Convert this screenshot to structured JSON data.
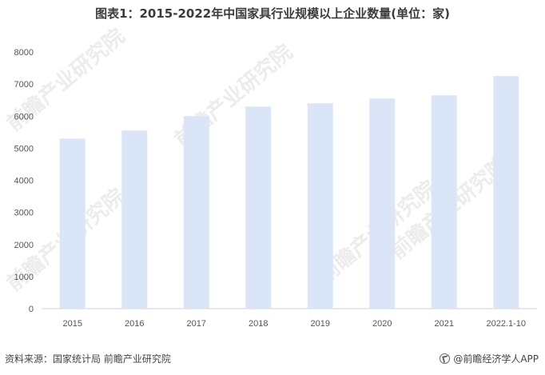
{
  "title": "图表1：2015-2022年中国家具行业规模以上企业数量(单位：家)",
  "footer": {
    "source": "资料来源：国家统计局 前瞻产业研究院",
    "brand": "@前瞻经济学人APP"
  },
  "watermark": "前瞻产业研究院",
  "colors": {
    "bar": "#dae6f7",
    "axis": "#d0d0d0"
  },
  "chart_data": {
    "type": "bar",
    "title": "图表1：2015-2022年中国家具行业规模以上企业数量(单位：家)",
    "categories": [
      "2015",
      "2016",
      "2017",
      "2018",
      "2019",
      "2020",
      "2021",
      "2022.1-10"
    ],
    "values": [
      5300,
      5550,
      6000,
      6300,
      6400,
      6550,
      6650,
      7250
    ],
    "ylim": [
      0,
      8000
    ],
    "yticks": [
      "0",
      "1000",
      "2000",
      "3000",
      "4000",
      "5000",
      "6000",
      "7000",
      "8000"
    ],
    "grid": false,
    "legend": "none"
  }
}
